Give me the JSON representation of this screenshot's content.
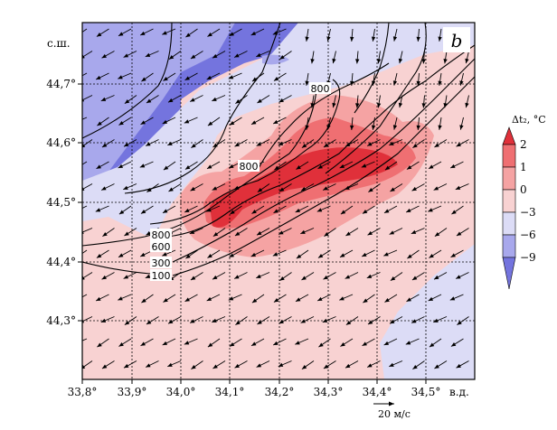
{
  "panel_label": "b",
  "lat_axis_title": "с.ш.",
  "lon_axis_title": "в.д.",
  "lat_ticks": [
    "44,7°",
    "44,6°",
    "44,5°",
    "44,4°",
    "44,3°"
  ],
  "lon_ticks": [
    "33,8°",
    "33,9°",
    "34,0°",
    "34,1°",
    "34,2°",
    "34,3°",
    "34,4°",
    "34,5°"
  ],
  "colorbar": {
    "title": "Δt₂, °C",
    "levels": [
      "2",
      "1",
      "0",
      "−3",
      "−6",
      "−9"
    ],
    "colors": [
      "#e0303a",
      "#ef6f72",
      "#f5a3a3",
      "#f8d2d2",
      "#dcdcf6",
      "#a8a8ec",
      "#7474de"
    ]
  },
  "contour_labels": [
    "800",
    "800",
    "800",
    "600",
    "300",
    "100"
  ],
  "vector_scale_label": "20 м/с",
  "colors": {
    "land_warm": "#f8d2d2",
    "sea_cold": "#7474de",
    "hot_core": "#e0303a"
  }
}
